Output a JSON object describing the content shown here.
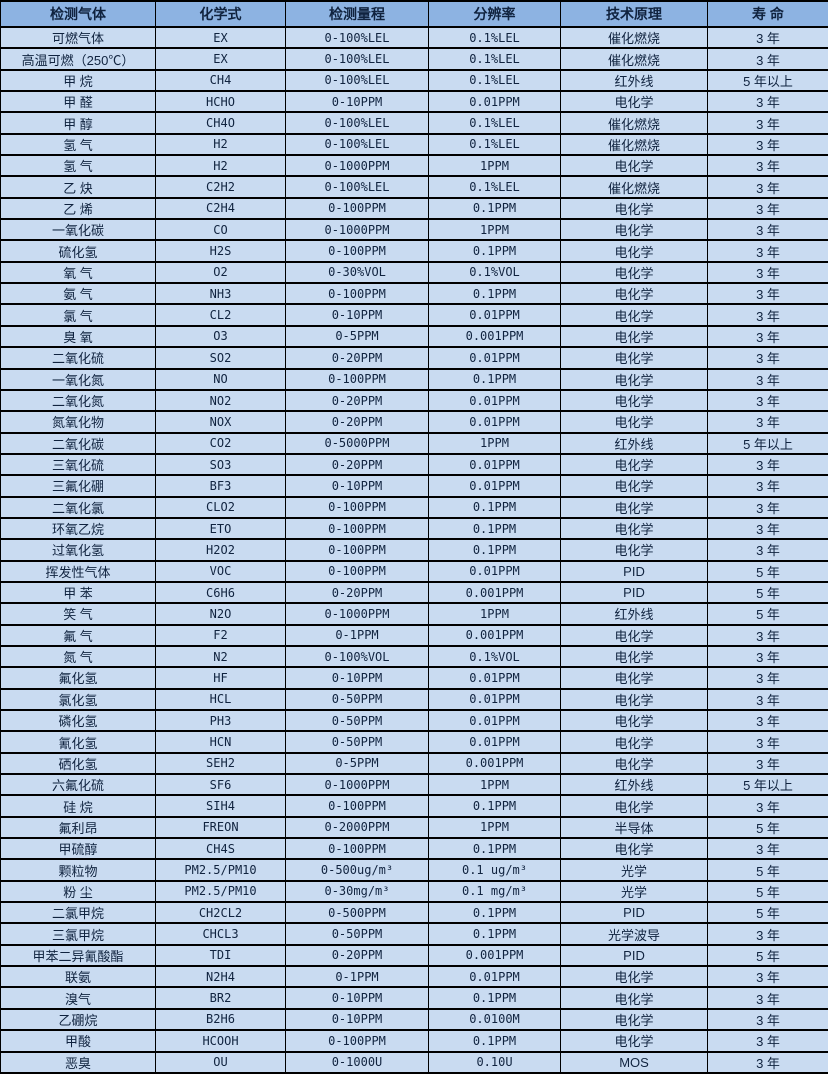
{
  "colors": {
    "header_bg": "#8db3e2",
    "row_bg": "#c9dbf1",
    "border": "#000000",
    "text": "#10233f"
  },
  "table": {
    "columns": [
      "检测气体",
      "化学式",
      "检测量程",
      "分辨率",
      "技术原理",
      "寿 命"
    ],
    "rows": [
      [
        "可燃气体",
        "EX",
        "0-100%LEL",
        "0.1%LEL",
        "催化燃烧",
        "3 年"
      ],
      [
        "高温可燃（250℃）",
        "EX",
        "0-100%LEL",
        "0.1%LEL",
        "催化燃烧",
        "3 年"
      ],
      [
        "甲 烷",
        "CH4",
        "0-100%LEL",
        "0.1%LEL",
        "红外线",
        "5 年以上"
      ],
      [
        "甲 醛",
        "HCHO",
        "0-10PPM",
        "0.01PPM",
        "电化学",
        "3 年"
      ],
      [
        "甲 醇",
        "CH4O",
        "0-100%LEL",
        "0.1%LEL",
        "催化燃烧",
        "3 年"
      ],
      [
        "氢 气",
        "H2",
        "0-100%LEL",
        "0.1%LEL",
        "催化燃烧",
        "3 年"
      ],
      [
        "氢 气",
        "H2",
        "0-1000PPM",
        "1PPM",
        "电化学",
        "3 年"
      ],
      [
        "乙 炔",
        "C2H2",
        "0-100%LEL",
        "0.1%LEL",
        "催化燃烧",
        "3 年"
      ],
      [
        "乙 烯",
        "C2H4",
        "0-100PPM",
        "0.1PPM",
        "电化学",
        "3 年"
      ],
      [
        "一氧化碳",
        "CO",
        "0-1000PPM",
        "1PPM",
        "电化学",
        "3 年"
      ],
      [
        "硫化氢",
        "H2S",
        "0-100PPM",
        "0.1PPM",
        "电化学",
        "3 年"
      ],
      [
        "氧 气",
        "O2",
        "0-30%VOL",
        "0.1%VOL",
        "电化学",
        "3 年"
      ],
      [
        "氨 气",
        "NH3",
        "0-100PPM",
        "0.1PPM",
        "电化学",
        "3 年"
      ],
      [
        "氯 气",
        "CL2",
        "0-10PPM",
        "0.01PPM",
        "电化学",
        "3 年"
      ],
      [
        "臭 氧",
        "O3",
        "0-5PPM",
        "0.001PPM",
        "电化学",
        "3 年"
      ],
      [
        "二氧化硫",
        "SO2",
        "0-20PPM",
        "0.01PPM",
        "电化学",
        "3 年"
      ],
      [
        "一氧化氮",
        "NO",
        "0-100PPM",
        "0.1PPM",
        "电化学",
        "3 年"
      ],
      [
        "二氧化氮",
        "NO2",
        "0-20PPM",
        "0.01PPM",
        "电化学",
        "3 年"
      ],
      [
        "氮氧化物",
        "NOX",
        "0-20PPM",
        "0.01PPM",
        "电化学",
        "3 年"
      ],
      [
        "二氧化碳",
        "CO2",
        "0-5000PPM",
        "1PPM",
        "红外线",
        "5 年以上"
      ],
      [
        "三氧化硫",
        "SO3",
        "0-20PPM",
        "0.01PPM",
        "电化学",
        "3 年"
      ],
      [
        "三氟化硼",
        "BF3",
        "0-10PPM",
        "0.01PPM",
        "电化学",
        "3 年"
      ],
      [
        "二氧化氯",
        "CLO2",
        "0-100PPM",
        "0.1PPM",
        "电化学",
        "3 年"
      ],
      [
        "环氧乙烷",
        "ETO",
        "0-100PPM",
        "0.1PPM",
        "电化学",
        "3 年"
      ],
      [
        "过氧化氢",
        "H2O2",
        "0-100PPM",
        "0.1PPM",
        "电化学",
        "3 年"
      ],
      [
        "挥发性气体",
        "VOC",
        "0-100PPM",
        "0.01PPM",
        "PID",
        "5 年"
      ],
      [
        "甲 苯",
        "C6H6",
        "0-20PPM",
        "0.001PPM",
        "PID",
        "5 年"
      ],
      [
        "笑 气",
        "N2O",
        "0-1000PPM",
        "1PPM",
        "红外线",
        "5 年"
      ],
      [
        "氟 气",
        "F2",
        "0-1PPM",
        "0.001PPM",
        "电化学",
        "3 年"
      ],
      [
        "氮 气",
        "N2",
        "0-100%VOL",
        "0.1%VOL",
        "电化学",
        "3 年"
      ],
      [
        "氟化氢",
        "HF",
        "0-10PPM",
        "0.01PPM",
        "电化学",
        "3 年"
      ],
      [
        "氯化氢",
        "HCL",
        "0-50PPM",
        "0.01PPM",
        "电化学",
        "3 年"
      ],
      [
        "磷化氢",
        "PH3",
        "0-50PPM",
        "0.01PPM",
        "电化学",
        "3 年"
      ],
      [
        "氰化氢",
        "HCN",
        "0-50PPM",
        "0.01PPM",
        "电化学",
        "3 年"
      ],
      [
        "硒化氢",
        "SEH2",
        "0-5PPM",
        "0.001PPM",
        "电化学",
        "3 年"
      ],
      [
        "六氟化硫",
        "SF6",
        "0-1000PPM",
        "1PPM",
        "红外线",
        "5 年以上"
      ],
      [
        "硅 烷",
        "SIH4",
        "0-100PPM",
        "0.1PPM",
        "电化学",
        "3 年"
      ],
      [
        "氟利昂",
        "FREON",
        "0-2000PPM",
        "1PPM",
        "半导体",
        "5 年"
      ],
      [
        "甲硫醇",
        "CH4S",
        "0-100PPM",
        "0.1PPM",
        "电化学",
        "3 年"
      ],
      [
        "颗粒物",
        "PM2.5/PM10",
        "0-500ug/m³",
        "0.1 ug/m³",
        "光学",
        "5 年"
      ],
      [
        "粉 尘",
        "PM2.5/PM10",
        "0-30mg/m³",
        "0.1 mg/m³",
        "光学",
        "5 年"
      ],
      [
        "二氯甲烷",
        "CH2CL2",
        "0-500PPM",
        "0.1PPM",
        "PID",
        "5 年"
      ],
      [
        "三氯甲烷",
        "CHCL3",
        "0-50PPM",
        "0.1PPM",
        "光学波导",
        "3 年"
      ],
      [
        "甲苯二异氰酸酯",
        "TDI",
        "0-20PPM",
        "0.001PPM",
        "PID",
        "5 年"
      ],
      [
        "联氨",
        "N2H4",
        "0-1PPM",
        "0.01PPM",
        "电化学",
        "3 年"
      ],
      [
        "溴气",
        "BR2",
        "0-10PPM",
        "0.1PPM",
        "电化学",
        "3 年"
      ],
      [
        "乙硼烷",
        "B2H6",
        "0-10PPM",
        "0.0100M",
        "电化学",
        "3 年"
      ],
      [
        "甲酸",
        "HCOOH",
        "0-100PPM",
        "0.1PPM",
        "电化学",
        "3 年"
      ],
      [
        "恶臭",
        "OU",
        "0-1000U",
        "0.10U",
        "MOS",
        "3 年"
      ]
    ]
  }
}
